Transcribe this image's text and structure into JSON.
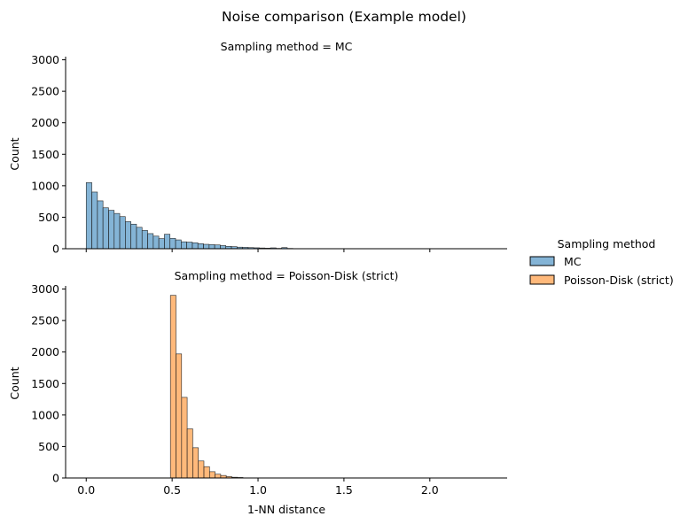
{
  "figure": {
    "title": "Noise comparison (Example model)",
    "legend": {
      "title": "Sampling method",
      "placement": "right",
      "entries": [
        {
          "label": "MC",
          "color": "#1f77b4"
        },
        {
          "label": "Poisson-Disk (strict)",
          "color": "#ff7f0e"
        }
      ]
    }
  },
  "chart_data": [
    {
      "type": "bar",
      "title": "Sampling method = MC",
      "xlabel": "",
      "ylabel": "Count",
      "xlim": [
        -0.12,
        2.45
      ],
      "ylim": [
        0,
        3050
      ],
      "xticks": [
        0.0,
        0.5,
        1.0,
        1.5,
        2.0
      ],
      "xtick_labels_visible": false,
      "yticks": [
        0,
        500,
        1000,
        1500,
        2000,
        2500,
        3000
      ],
      "grid": false,
      "bin_start": 0.0,
      "bin_width": 0.0325,
      "values": [
        1050,
        900,
        760,
        650,
        610,
        560,
        510,
        430,
        390,
        340,
        290,
        240,
        200,
        160,
        230,
        165,
        140,
        110,
        105,
        95,
        80,
        70,
        65,
        60,
        50,
        38,
        33,
        25,
        22,
        18,
        15,
        12,
        9,
        14,
        6,
        18,
        5
      ],
      "color": "#1f77b4"
    },
    {
      "type": "bar",
      "title": "Sampling method = Poisson-Disk (strict)",
      "xlabel": "1-NN distance",
      "ylabel": "Count",
      "xlim": [
        -0.12,
        2.45
      ],
      "ylim": [
        0,
        3050
      ],
      "xticks": [
        0.0,
        0.5,
        1.0,
        1.5,
        2.0
      ],
      "xtick_labels": [
        "0.0",
        "0.5",
        "1.0",
        "1.5",
        "2.0"
      ],
      "yticks": [
        0,
        500,
        1000,
        1500,
        2000,
        2500,
        3000
      ],
      "grid": false,
      "bin_start": 0.49,
      "bin_width": 0.0325,
      "values": [
        2900,
        1970,
        1280,
        780,
        480,
        270,
        180,
        100,
        60,
        40,
        22,
        12,
        8
      ],
      "color": "#ff7f0e"
    }
  ]
}
